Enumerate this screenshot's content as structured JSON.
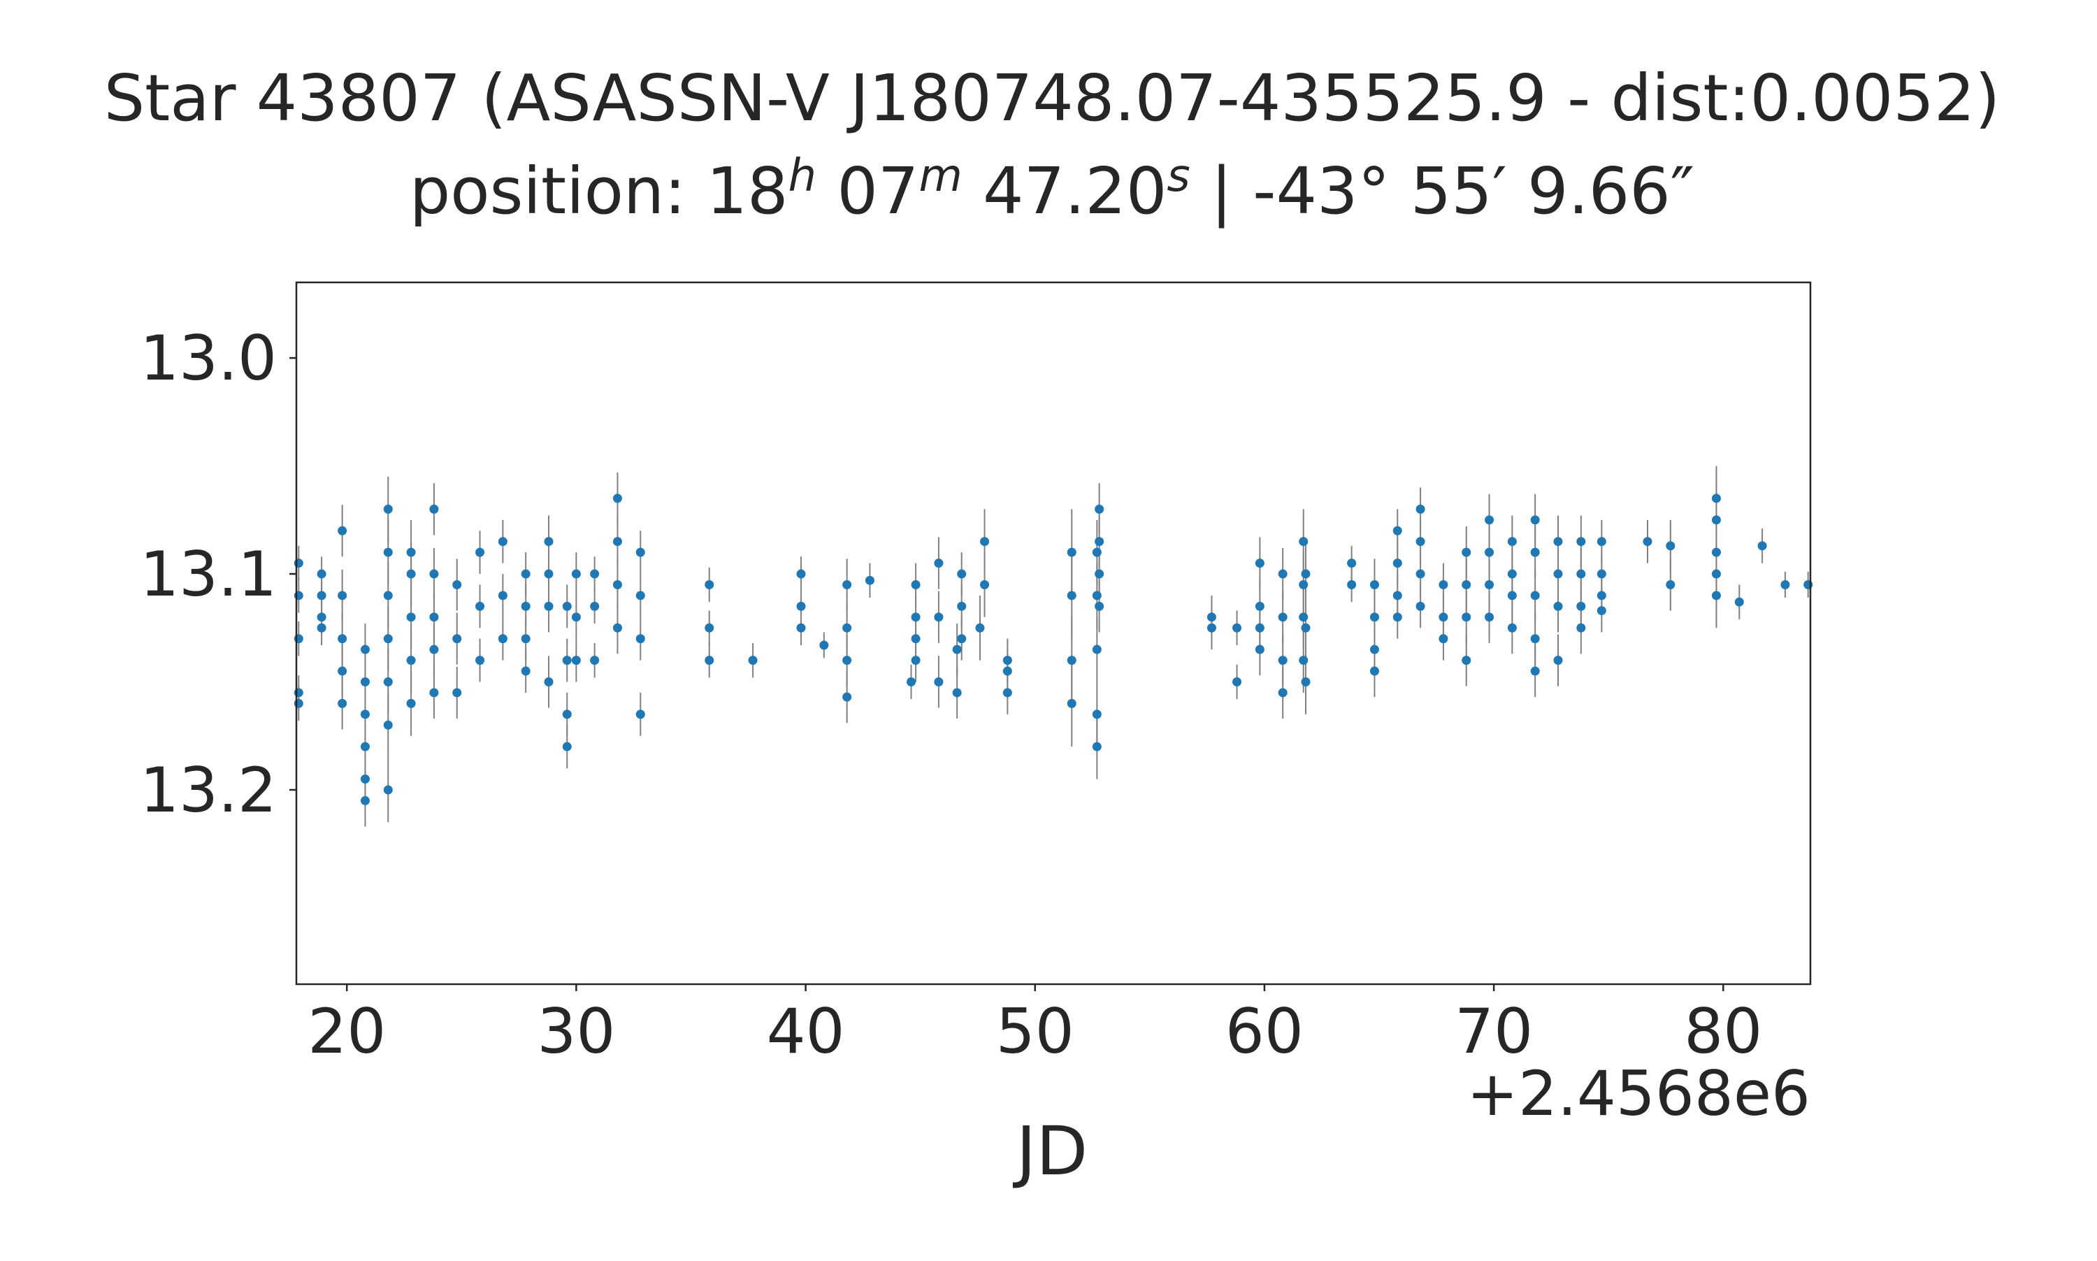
{
  "chart_data": {
    "type": "scatter",
    "title": "Star 43807 (ASASSN-V J180748.07-435525.9 - dist:0.0052)",
    "subtitle": {
      "prefix": "position: ",
      "ra_h": "18",
      "ra_h_unit": "h",
      "ra_m": "07",
      "ra_m_unit": "m",
      "ra_s": "47.20",
      "ra_s_unit": "s",
      "separator": " | ",
      "dec": "-43° 55′ 9.66″"
    },
    "xlabel": "JD",
    "ylabel": "",
    "x_offset_label": "+2.4568e6",
    "xlim": [
      2456817.8,
      2456883.8
    ],
    "ylim": [
      13.29,
      12.965
    ],
    "y_inverted": true,
    "xticks": [
      {
        "value": 2456820,
        "label": "20"
      },
      {
        "value": 2456830,
        "label": "30"
      },
      {
        "value": 2456840,
        "label": "40"
      },
      {
        "value": 2456850,
        "label": "50"
      },
      {
        "value": 2456860,
        "label": "60"
      },
      {
        "value": 2456870,
        "label": "70"
      },
      {
        "value": 2456880,
        "label": "80"
      }
    ],
    "yticks": [
      {
        "value": 13.0,
        "label": "13.0"
      },
      {
        "value": 13.1,
        "label": "13.1"
      },
      {
        "value": 13.2,
        "label": "13.2"
      }
    ],
    "grid": false,
    "legend": "none",
    "marker_color": "#1f77b4",
    "errorbar_color": "#808080",
    "points": [
      [
        2456817.9,
        13.095,
        0.008
      ],
      [
        2456817.9,
        13.11,
        0.008
      ],
      [
        2456817.9,
        13.13,
        0.008
      ],
      [
        2456817.9,
        13.155,
        0.008
      ],
      [
        2456817.9,
        13.16,
        0.008
      ],
      [
        2456818.9,
        13.1,
        0.008
      ],
      [
        2456818.9,
        13.11,
        0.008
      ],
      [
        2456818.9,
        13.12,
        0.008
      ],
      [
        2456818.9,
        13.125,
        0.008
      ],
      [
        2456819.8,
        13.08,
        0.012
      ],
      [
        2456819.8,
        13.11,
        0.012
      ],
      [
        2456819.8,
        13.13,
        0.012
      ],
      [
        2456819.8,
        13.145,
        0.012
      ],
      [
        2456819.8,
        13.16,
        0.012
      ],
      [
        2456820.8,
        13.135,
        0.012
      ],
      [
        2456820.8,
        13.15,
        0.012
      ],
      [
        2456820.8,
        13.165,
        0.012
      ],
      [
        2456820.8,
        13.18,
        0.012
      ],
      [
        2456820.8,
        13.195,
        0.012
      ],
      [
        2456820.8,
        13.205,
        0.012
      ],
      [
        2456821.8,
        13.07,
        0.015
      ],
      [
        2456821.8,
        13.09,
        0.015
      ],
      [
        2456821.8,
        13.11,
        0.015
      ],
      [
        2456821.8,
        13.13,
        0.015
      ],
      [
        2456821.8,
        13.15,
        0.015
      ],
      [
        2456821.8,
        13.17,
        0.015
      ],
      [
        2456821.8,
        13.2,
        0.015
      ],
      [
        2456822.8,
        13.09,
        0.015
      ],
      [
        2456822.8,
        13.1,
        0.015
      ],
      [
        2456822.8,
        13.12,
        0.015
      ],
      [
        2456822.8,
        13.14,
        0.015
      ],
      [
        2456822.8,
        13.16,
        0.015
      ],
      [
        2456823.8,
        13.07,
        0.012
      ],
      [
        2456823.8,
        13.1,
        0.012
      ],
      [
        2456823.8,
        13.12,
        0.012
      ],
      [
        2456823.8,
        13.135,
        0.012
      ],
      [
        2456823.8,
        13.155,
        0.012
      ],
      [
        2456824.8,
        13.105,
        0.012
      ],
      [
        2456824.8,
        13.13,
        0.012
      ],
      [
        2456824.8,
        13.155,
        0.012
      ],
      [
        2456825.8,
        13.09,
        0.01
      ],
      [
        2456825.8,
        13.115,
        0.01
      ],
      [
        2456825.8,
        13.14,
        0.01
      ],
      [
        2456826.8,
        13.085,
        0.01
      ],
      [
        2456826.8,
        13.11,
        0.01
      ],
      [
        2456826.8,
        13.13,
        0.01
      ],
      [
        2456827.8,
        13.1,
        0.01
      ],
      [
        2456827.8,
        13.115,
        0.01
      ],
      [
        2456827.8,
        13.13,
        0.01
      ],
      [
        2456827.8,
        13.145,
        0.01
      ],
      [
        2456828.8,
        13.085,
        0.012
      ],
      [
        2456828.8,
        13.1,
        0.012
      ],
      [
        2456828.8,
        13.115,
        0.012
      ],
      [
        2456828.8,
        13.15,
        0.012
      ],
      [
        2456829.6,
        13.115,
        0.01
      ],
      [
        2456829.6,
        13.14,
        0.01
      ],
      [
        2456829.6,
        13.165,
        0.01
      ],
      [
        2456829.6,
        13.18,
        0.01
      ],
      [
        2456830.0,
        13.1,
        0.01
      ],
      [
        2456830.0,
        13.12,
        0.01
      ],
      [
        2456830.0,
        13.14,
        0.01
      ],
      [
        2456830.8,
        13.1,
        0.008
      ],
      [
        2456830.8,
        13.115,
        0.008
      ],
      [
        2456830.8,
        13.14,
        0.008
      ],
      [
        2456831.8,
        13.065,
        0.012
      ],
      [
        2456831.8,
        13.085,
        0.012
      ],
      [
        2456831.8,
        13.105,
        0.012
      ],
      [
        2456831.8,
        13.125,
        0.012
      ],
      [
        2456832.8,
        13.09,
        0.01
      ],
      [
        2456832.8,
        13.11,
        0.01
      ],
      [
        2456832.8,
        13.13,
        0.01
      ],
      [
        2456832.8,
        13.165,
        0.01
      ],
      [
        2456835.8,
        13.105,
        0.008
      ],
      [
        2456835.8,
        13.125,
        0.008
      ],
      [
        2456835.8,
        13.14,
        0.008
      ],
      [
        2456837.7,
        13.14,
        0.008
      ],
      [
        2456839.8,
        13.1,
        0.008
      ],
      [
        2456839.8,
        13.115,
        0.008
      ],
      [
        2456839.8,
        13.125,
        0.008
      ],
      [
        2456840.8,
        13.133,
        0.006
      ],
      [
        2456841.8,
        13.105,
        0.012
      ],
      [
        2456841.8,
        13.125,
        0.012
      ],
      [
        2456841.8,
        13.14,
        0.012
      ],
      [
        2456841.8,
        13.157,
        0.012
      ],
      [
        2456842.8,
        13.103,
        0.008
      ],
      [
        2456844.6,
        13.15,
        0.008
      ],
      [
        2456844.8,
        13.105,
        0.01
      ],
      [
        2456844.8,
        13.12,
        0.01
      ],
      [
        2456844.8,
        13.13,
        0.01
      ],
      [
        2456844.8,
        13.14,
        0.01
      ],
      [
        2456845.8,
        13.095,
        0.012
      ],
      [
        2456845.8,
        13.12,
        0.012
      ],
      [
        2456845.8,
        13.15,
        0.012
      ],
      [
        2456846.6,
        13.135,
        0.012
      ],
      [
        2456846.6,
        13.155,
        0.012
      ],
      [
        2456846.8,
        13.1,
        0.01
      ],
      [
        2456846.8,
        13.115,
        0.01
      ],
      [
        2456846.8,
        13.13,
        0.01
      ],
      [
        2456847.6,
        13.125,
        0.015
      ],
      [
        2456847.8,
        13.085,
        0.015
      ],
      [
        2456847.8,
        13.105,
        0.015
      ],
      [
        2456848.8,
        13.14,
        0.01
      ],
      [
        2456848.8,
        13.145,
        0.01
      ],
      [
        2456848.8,
        13.155,
        0.01
      ],
      [
        2456851.6,
        13.09,
        0.02
      ],
      [
        2456851.6,
        13.11,
        0.02
      ],
      [
        2456851.6,
        13.14,
        0.02
      ],
      [
        2456851.6,
        13.16,
        0.02
      ],
      [
        2456852.7,
        13.09,
        0.015
      ],
      [
        2456852.7,
        13.11,
        0.015
      ],
      [
        2456852.7,
        13.135,
        0.015
      ],
      [
        2456852.7,
        13.165,
        0.015
      ],
      [
        2456852.7,
        13.18,
        0.015
      ],
      [
        2456852.8,
        13.07,
        0.012
      ],
      [
        2456852.8,
        13.085,
        0.012
      ],
      [
        2456852.8,
        13.1,
        0.012
      ],
      [
        2456852.8,
        13.115,
        0.012
      ],
      [
        2456857.7,
        13.12,
        0.01
      ],
      [
        2456857.7,
        13.125,
        0.01
      ],
      [
        2456858.8,
        13.125,
        0.008
      ],
      [
        2456858.8,
        13.15,
        0.008
      ],
      [
        2456859.8,
        13.095,
        0.012
      ],
      [
        2456859.8,
        13.115,
        0.012
      ],
      [
        2456859.8,
        13.125,
        0.012
      ],
      [
        2456859.8,
        13.135,
        0.012
      ],
      [
        2456860.8,
        13.1,
        0.012
      ],
      [
        2456860.8,
        13.12,
        0.012
      ],
      [
        2456860.8,
        13.14,
        0.012
      ],
      [
        2456860.8,
        13.155,
        0.012
      ],
      [
        2456861.7,
        13.085,
        0.015
      ],
      [
        2456861.7,
        13.105,
        0.015
      ],
      [
        2456861.7,
        13.12,
        0.015
      ],
      [
        2456861.7,
        13.14,
        0.015
      ],
      [
        2456861.8,
        13.1,
        0.015
      ],
      [
        2456861.8,
        13.125,
        0.015
      ],
      [
        2456861.8,
        13.15,
        0.015
      ],
      [
        2456863.8,
        13.095,
        0.008
      ],
      [
        2456863.8,
        13.105,
        0.008
      ],
      [
        2456864.8,
        13.105,
        0.012
      ],
      [
        2456864.8,
        13.12,
        0.012
      ],
      [
        2456864.8,
        13.135,
        0.012
      ],
      [
        2456864.8,
        13.145,
        0.012
      ],
      [
        2456865.8,
        13.08,
        0.01
      ],
      [
        2456865.8,
        13.095,
        0.01
      ],
      [
        2456865.8,
        13.11,
        0.01
      ],
      [
        2456865.8,
        13.12,
        0.01
      ],
      [
        2456866.8,
        13.07,
        0.01
      ],
      [
        2456866.8,
        13.085,
        0.01
      ],
      [
        2456866.8,
        13.1,
        0.01
      ],
      [
        2456866.8,
        13.115,
        0.01
      ],
      [
        2456867.8,
        13.105,
        0.01
      ],
      [
        2456867.8,
        13.12,
        0.01
      ],
      [
        2456867.8,
        13.13,
        0.01
      ],
      [
        2456868.8,
        13.09,
        0.012
      ],
      [
        2456868.8,
        13.105,
        0.012
      ],
      [
        2456868.8,
        13.12,
        0.012
      ],
      [
        2456868.8,
        13.14,
        0.012
      ],
      [
        2456869.8,
        13.075,
        0.012
      ],
      [
        2456869.8,
        13.09,
        0.012
      ],
      [
        2456869.8,
        13.105,
        0.012
      ],
      [
        2456869.8,
        13.12,
        0.012
      ],
      [
        2456870.8,
        13.085,
        0.012
      ],
      [
        2456870.8,
        13.1,
        0.012
      ],
      [
        2456870.8,
        13.11,
        0.012
      ],
      [
        2456870.8,
        13.125,
        0.012
      ],
      [
        2456871.8,
        13.075,
        0.012
      ],
      [
        2456871.8,
        13.09,
        0.012
      ],
      [
        2456871.8,
        13.11,
        0.012
      ],
      [
        2456871.8,
        13.13,
        0.012
      ],
      [
        2456871.8,
        13.145,
        0.012
      ],
      [
        2456872.8,
        13.085,
        0.012
      ],
      [
        2456872.8,
        13.1,
        0.012
      ],
      [
        2456872.8,
        13.115,
        0.012
      ],
      [
        2456872.8,
        13.14,
        0.012
      ],
      [
        2456873.8,
        13.085,
        0.012
      ],
      [
        2456873.8,
        13.1,
        0.012
      ],
      [
        2456873.8,
        13.115,
        0.012
      ],
      [
        2456873.8,
        13.125,
        0.012
      ],
      [
        2456874.7,
        13.085,
        0.01
      ],
      [
        2456874.7,
        13.1,
        0.01
      ],
      [
        2456874.7,
        13.11,
        0.01
      ],
      [
        2456874.7,
        13.117,
        0.01
      ],
      [
        2456876.7,
        13.085,
        0.01
      ],
      [
        2456877.7,
        13.087,
        0.012
      ],
      [
        2456877.7,
        13.105,
        0.012
      ],
      [
        2456879.7,
        13.065,
        0.015
      ],
      [
        2456879.7,
        13.075,
        0.015
      ],
      [
        2456879.7,
        13.09,
        0.015
      ],
      [
        2456879.7,
        13.1,
        0.015
      ],
      [
        2456879.7,
        13.11,
        0.015
      ],
      [
        2456880.7,
        13.113,
        0.008
      ],
      [
        2456881.7,
        13.087,
        0.008
      ],
      [
        2456882.7,
        13.105,
        0.006
      ],
      [
        2456883.7,
        13.105,
        0.006
      ]
    ]
  }
}
